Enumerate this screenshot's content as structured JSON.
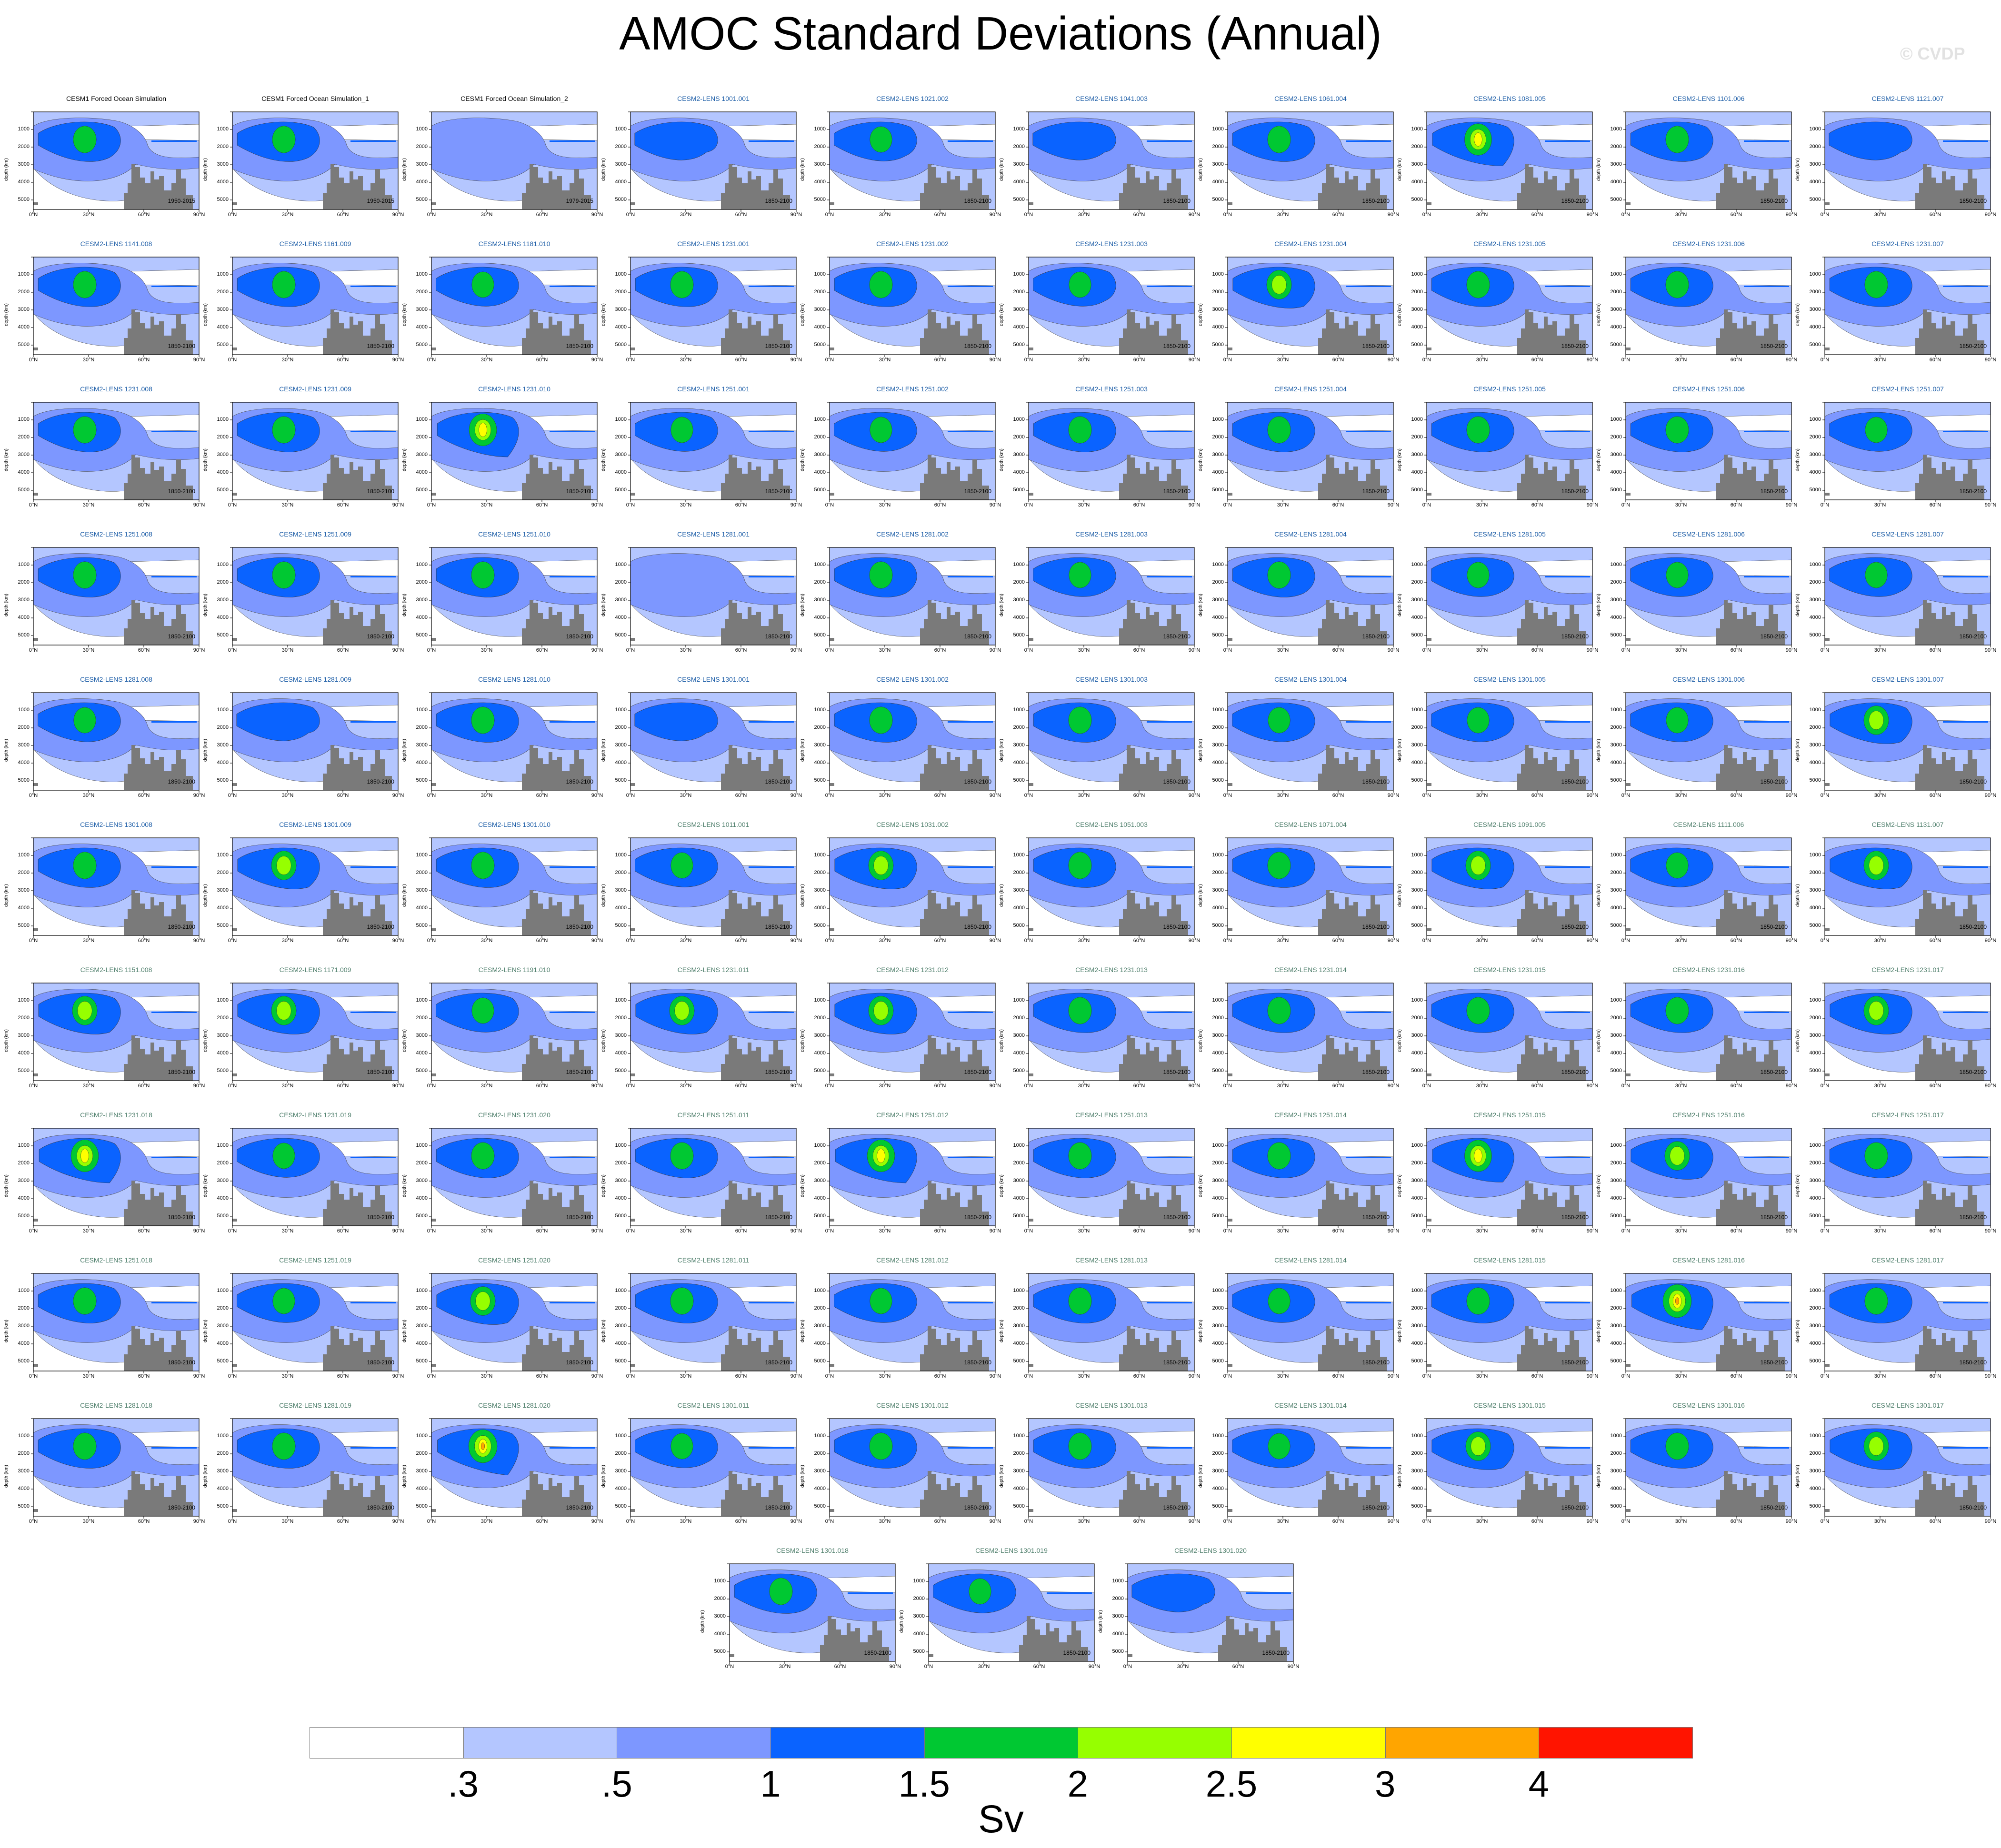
{
  "title": "AMOC Standard Deviations (Annual)",
  "watermark": "© CVDP",
  "chart_data": {
    "type": "heatmap",
    "title": "AMOC Standard Deviations (Annual)",
    "units": "Sv",
    "ylabel": "depth (km)",
    "y_ticks": [
      "1000",
      "2000",
      "3000",
      "4000",
      "5000"
    ],
    "x_ticks": [
      "0°N",
      "30°N",
      "60°N",
      "90°N"
    ],
    "colorbar": {
      "colors": [
        "#ffffff",
        "#b4c6ff",
        "#7d97ff",
        "#0a63ff",
        "#00c832",
        "#96ff00",
        "#ffff00",
        "#ffa500",
        "#ff1400"
      ],
      "labels": [
        ".3",
        ".5",
        "1",
        "1.5",
        "2",
        "2.5",
        "3",
        "4"
      ]
    },
    "panels": [
      {
        "title": "CESM1 Forced Ocean Simulation",
        "period": "1950-2015",
        "group": "forced",
        "peak": 1.8
      },
      {
        "title": "CESM1 Forced Ocean Simulation_1",
        "period": "1950-2015",
        "group": "forced",
        "peak": 1.8
      },
      {
        "title": "CESM1 Forced Ocean Simulation_2",
        "period": "1979-2015",
        "group": "forced",
        "peak": 0.9
      },
      {
        "title": "CESM2-LENS 1001.001",
        "period": "1850-2100",
        "group": "lens",
        "peak": 1.2
      },
      {
        "title": "CESM2-LENS 1021.002",
        "period": "1850-2100",
        "group": "lens",
        "peak": 1.6
      },
      {
        "title": "CESM2-LENS 1041.003",
        "period": "1850-2100",
        "group": "lens",
        "peak": 1.2
      },
      {
        "title": "CESM2-LENS 1061.004",
        "period": "1850-2100",
        "group": "lens",
        "peak": 1.8
      },
      {
        "title": "CESM2-LENS 1081.005",
        "period": "1850-2100",
        "group": "lens",
        "peak": 2.7
      },
      {
        "title": "CESM2-LENS 1101.006",
        "period": "1850-2100",
        "group": "lens",
        "peak": 1.8
      },
      {
        "title": "CESM2-LENS 1121.007",
        "period": "1850-2100",
        "group": "lens",
        "peak": 1.2
      },
      {
        "title": "CESM2-LENS 1141.008",
        "period": "1850-2100",
        "group": "lens",
        "peak": 1.8
      },
      {
        "title": "CESM2-LENS 1161.009",
        "period": "1850-2100",
        "group": "lens",
        "peak": 1.8
      },
      {
        "title": "CESM2-LENS 1181.010",
        "period": "1850-2100",
        "group": "lens",
        "peak": 1.6
      },
      {
        "title": "CESM2-LENS 1231.001",
        "period": "1850-2100",
        "group": "lens",
        "peak": 1.8
      },
      {
        "title": "CESM2-LENS 1231.002",
        "period": "1850-2100",
        "group": "lens",
        "peak": 1.8
      },
      {
        "title": "CESM2-LENS 1231.003",
        "period": "1850-2100",
        "group": "lens",
        "peak": 1.6
      },
      {
        "title": "CESM2-LENS 1231.004",
        "period": "1850-2100",
        "group": "lens",
        "peak": 2.2
      },
      {
        "title": "CESM2-LENS 1231.005",
        "period": "1850-2100",
        "group": "lens",
        "peak": 1.8
      },
      {
        "title": "CESM2-LENS 1231.006",
        "period": "1850-2100",
        "group": "lens",
        "peak": 1.8
      },
      {
        "title": "CESM2-LENS 1231.007",
        "period": "1850-2100",
        "group": "lens",
        "peak": 1.8
      },
      {
        "title": "CESM2-LENS 1231.008",
        "period": "1850-2100",
        "group": "lens",
        "peak": 1.8
      },
      {
        "title": "CESM2-LENS 1231.009",
        "period": "1850-2100",
        "group": "lens",
        "peak": 1.8
      },
      {
        "title": "CESM2-LENS 1231.010",
        "period": "1850-2100",
        "group": "lens",
        "peak": 2.8
      },
      {
        "title": "CESM2-LENS 1251.001",
        "period": "1850-2100",
        "group": "lens",
        "peak": 1.6
      },
      {
        "title": "CESM2-LENS 1251.002",
        "period": "1850-2100",
        "group": "lens",
        "peak": 1.6
      },
      {
        "title": "CESM2-LENS 1251.003",
        "period": "1850-2100",
        "group": "lens",
        "peak": 1.8
      },
      {
        "title": "CESM2-LENS 1251.004",
        "period": "1850-2100",
        "group": "lens",
        "peak": 1.8
      },
      {
        "title": "CESM2-LENS 1251.005",
        "period": "1850-2100",
        "group": "lens",
        "peak": 1.8
      },
      {
        "title": "CESM2-LENS 1251.006",
        "period": "1850-2100",
        "group": "lens",
        "peak": 1.8
      },
      {
        "title": "CESM2-LENS 1251.007",
        "period": "1850-2100",
        "group": "lens",
        "peak": 1.6
      },
      {
        "title": "CESM2-LENS 1251.008",
        "period": "1850-2100",
        "group": "lens",
        "peak": 1.8
      },
      {
        "title": "CESM2-LENS 1251.009",
        "period": "1850-2100",
        "group": "lens",
        "peak": 1.8
      },
      {
        "title": "CESM2-LENS 1251.010",
        "period": "1850-2100",
        "group": "lens",
        "peak": 1.8
      },
      {
        "title": "CESM2-LENS 1281.001",
        "period": "1850-2100",
        "group": "lens",
        "peak": 0.9
      },
      {
        "title": "CESM2-LENS 1281.002",
        "period": "1850-2100",
        "group": "lens",
        "peak": 1.8
      },
      {
        "title": "CESM2-LENS 1281.003",
        "period": "1850-2100",
        "group": "lens",
        "peak": 1.6
      },
      {
        "title": "CESM2-LENS 1281.004",
        "period": "1850-2100",
        "group": "lens",
        "peak": 1.8
      },
      {
        "title": "CESM2-LENS 1281.005",
        "period": "1850-2100",
        "group": "lens",
        "peak": 1.6
      },
      {
        "title": "CESM2-LENS 1281.006",
        "period": "1850-2100",
        "group": "lens",
        "peak": 1.6
      },
      {
        "title": "CESM2-LENS 1281.007",
        "period": "1850-2100",
        "group": "lens",
        "peak": 1.6
      },
      {
        "title": "CESM2-LENS 1281.008",
        "period": "1850-2100",
        "group": "lens",
        "peak": 1.6
      },
      {
        "title": "CESM2-LENS 1281.009",
        "period": "1850-2100",
        "group": "lens",
        "peak": 1.2
      },
      {
        "title": "CESM2-LENS 1281.010",
        "period": "1850-2100",
        "group": "lens",
        "peak": 1.8
      },
      {
        "title": "CESM2-LENS 1301.001",
        "period": "1850-2100",
        "group": "lens",
        "peak": 1.2
      },
      {
        "title": "CESM2-LENS 1301.002",
        "period": "1850-2100",
        "group": "lens",
        "peak": 1.8
      },
      {
        "title": "CESM2-LENS 1301.003",
        "period": "1850-2100",
        "group": "lens",
        "peak": 1.8
      },
      {
        "title": "CESM2-LENS 1301.004",
        "period": "1850-2100",
        "group": "lens",
        "peak": 1.6
      },
      {
        "title": "CESM2-LENS 1301.005",
        "period": "1850-2100",
        "group": "lens",
        "peak": 1.6
      },
      {
        "title": "CESM2-LENS 1301.006",
        "period": "1850-2100",
        "group": "lens",
        "peak": 1.6
      },
      {
        "title": "CESM2-LENS 1301.007",
        "period": "1850-2100",
        "group": "lens",
        "peak": 2.2
      },
      {
        "title": "CESM2-LENS 1301.008",
        "period": "1850-2100",
        "group": "lens",
        "peak": 1.8
      },
      {
        "title": "CESM2-LENS 1301.009",
        "period": "1850-2100",
        "group": "lens",
        "peak": 2.2
      },
      {
        "title": "CESM2-LENS 1301.010",
        "period": "1850-2100",
        "group": "lens",
        "peak": 1.8
      },
      {
        "title": "CESM2-LENS 1011.001",
        "period": "1850-2100",
        "group": "lens2",
        "peak": 1.6
      },
      {
        "title": "CESM2-LENS 1031.002",
        "period": "1850-2100",
        "group": "lens2",
        "peak": 2.2
      },
      {
        "title": "CESM2-LENS 1051.003",
        "period": "1850-2100",
        "group": "lens2",
        "peak": 1.8
      },
      {
        "title": "CESM2-LENS 1071.004",
        "period": "1850-2100",
        "group": "lens2",
        "peak": 1.8
      },
      {
        "title": "CESM2-LENS 1091.005",
        "period": "1850-2100",
        "group": "lens2",
        "peak": 2.2
      },
      {
        "title": "CESM2-LENS 1111.006",
        "period": "1850-2100",
        "group": "lens2",
        "peak": 1.6
      },
      {
        "title": "CESM2-LENS 1131.007",
        "period": "1850-2100",
        "group": "lens2",
        "peak": 2.2
      },
      {
        "title": "CESM2-LENS 1151.008",
        "period": "1850-2100",
        "group": "lens2",
        "peak": 2.2
      },
      {
        "title": "CESM2-LENS 1171.009",
        "period": "1850-2100",
        "group": "lens2",
        "peak": 2.2
      },
      {
        "title": "CESM2-LENS 1191.010",
        "period": "1850-2100",
        "group": "lens2",
        "peak": 1.6
      },
      {
        "title": "CESM2-LENS 1231.011",
        "period": "1850-2100",
        "group": "lens2",
        "peak": 2.2
      },
      {
        "title": "CESM2-LENS 1231.012",
        "period": "1850-2100",
        "group": "lens2",
        "peak": 2.2
      },
      {
        "title": "CESM2-LENS 1231.013",
        "period": "1850-2100",
        "group": "lens2",
        "peak": 1.8
      },
      {
        "title": "CESM2-LENS 1231.014",
        "period": "1850-2100",
        "group": "lens2",
        "peak": 1.8
      },
      {
        "title": "CESM2-LENS 1231.015",
        "period": "1850-2100",
        "group": "lens2",
        "peak": 1.8
      },
      {
        "title": "CESM2-LENS 1231.016",
        "period": "1850-2100",
        "group": "lens2",
        "peak": 1.8
      },
      {
        "title": "CESM2-LENS 1231.017",
        "period": "1850-2100",
        "group": "lens2",
        "peak": 2.2
      },
      {
        "title": "CESM2-LENS 1231.018",
        "period": "1850-2100",
        "group": "lens2",
        "peak": 2.8
      },
      {
        "title": "CESM2-LENS 1231.019",
        "period": "1850-2100",
        "group": "lens2",
        "peak": 1.6
      },
      {
        "title": "CESM2-LENS 1231.020",
        "period": "1850-2100",
        "group": "lens2",
        "peak": 1.8
      },
      {
        "title": "CESM2-LENS 1251.011",
        "period": "1850-2100",
        "group": "lens2",
        "peak": 1.8
      },
      {
        "title": "CESM2-LENS 1251.012",
        "period": "1850-2100",
        "group": "lens2",
        "peak": 2.8
      },
      {
        "title": "CESM2-LENS 1251.013",
        "period": "1850-2100",
        "group": "lens2",
        "peak": 1.8
      },
      {
        "title": "CESM2-LENS 1251.014",
        "period": "1850-2100",
        "group": "lens2",
        "peak": 1.8
      },
      {
        "title": "CESM2-LENS 1251.015",
        "period": "1850-2100",
        "group": "lens2",
        "peak": 2.7
      },
      {
        "title": "CESM2-LENS 1251.016",
        "period": "1850-2100",
        "group": "lens2",
        "peak": 2.2
      },
      {
        "title": "CESM2-LENS 1251.017",
        "period": "1850-2100",
        "group": "lens2",
        "peak": 1.8
      },
      {
        "title": "CESM2-LENS 1251.018",
        "period": "1850-2100",
        "group": "lens2",
        "peak": 1.8
      },
      {
        "title": "CESM2-LENS 1251.019",
        "period": "1850-2100",
        "group": "lens2",
        "peak": 1.6
      },
      {
        "title": "CESM2-LENS 1251.020",
        "period": "1850-2100",
        "group": "lens2",
        "peak": 2.2
      },
      {
        "title": "CESM2-LENS 1281.011",
        "period": "1850-2100",
        "group": "lens2",
        "peak": 1.8
      },
      {
        "title": "CESM2-LENS 1281.012",
        "period": "1850-2100",
        "group": "lens2",
        "peak": 1.6
      },
      {
        "title": "CESM2-LENS 1281.013",
        "period": "1850-2100",
        "group": "lens2",
        "peak": 1.8
      },
      {
        "title": "CESM2-LENS 1281.014",
        "period": "1850-2100",
        "group": "lens2",
        "peak": 1.6
      },
      {
        "title": "CESM2-LENS 1281.015",
        "period": "1850-2100",
        "group": "lens2",
        "peak": 1.8
      },
      {
        "title": "CESM2-LENS 1281.016",
        "period": "1850-2100",
        "group": "lens2",
        "peak": 3.0
      },
      {
        "title": "CESM2-LENS 1281.017",
        "period": "1850-2100",
        "group": "lens2",
        "peak": 1.8
      },
      {
        "title": "CESM2-LENS 1281.018",
        "period": "1850-2100",
        "group": "lens2",
        "peak": 1.8
      },
      {
        "title": "CESM2-LENS 1281.019",
        "period": "1850-2100",
        "group": "lens2",
        "peak": 1.8
      },
      {
        "title": "CESM2-LENS 1281.020",
        "period": "1850-2100",
        "group": "lens2",
        "peak": 3.0
      },
      {
        "title": "CESM2-LENS 1301.011",
        "period": "1850-2100",
        "group": "lens2",
        "peak": 1.6
      },
      {
        "title": "CESM2-LENS 1301.012",
        "period": "1850-2100",
        "group": "lens2",
        "peak": 1.8
      },
      {
        "title": "CESM2-LENS 1301.013",
        "period": "1850-2100",
        "group": "lens2",
        "peak": 1.8
      },
      {
        "title": "CESM2-LENS 1301.014",
        "period": "1850-2100",
        "group": "lens2",
        "peak": 1.6
      },
      {
        "title": "CESM2-LENS 1301.015",
        "period": "1850-2100",
        "group": "lens2",
        "peak": 2.2
      },
      {
        "title": "CESM2-LENS 1301.016",
        "period": "1850-2100",
        "group": "lens2",
        "peak": 1.8
      },
      {
        "title": "CESM2-LENS 1301.017",
        "period": "1850-2100",
        "group": "lens2",
        "peak": 2.2
      },
      {
        "title": "CESM2-LENS 1301.018",
        "period": "1850-2100",
        "group": "lens2",
        "peak": 1.8
      },
      {
        "title": "CESM2-LENS 1301.019",
        "period": "1850-2100",
        "group": "lens2",
        "peak": 1.6
      },
      {
        "title": "CESM2-LENS 1301.020",
        "period": "1850-2100",
        "group": "lens2",
        "peak": 1.2
      }
    ]
  }
}
